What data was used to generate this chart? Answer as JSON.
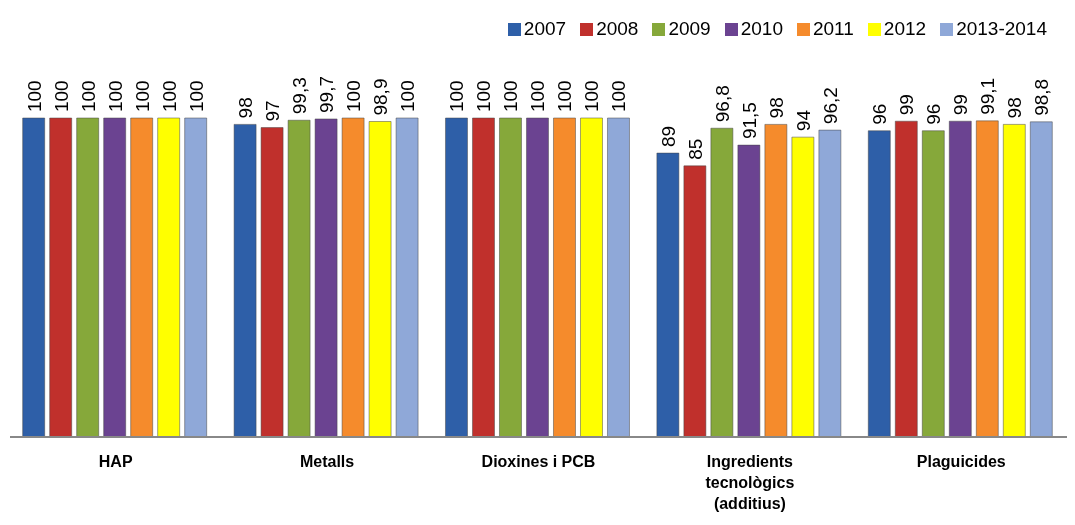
{
  "chart_data": {
    "type": "bar",
    "categories": [
      "HAP",
      "Metalls",
      "Dioxines i PCB",
      "Ingredients tecnològics (additius)",
      "Plaguicides"
    ],
    "series": [
      {
        "name": "2007",
        "color": "#2e5fa8",
        "values": [
          100,
          98,
          100,
          89,
          96
        ],
        "value_labels": [
          "100",
          "98",
          "100",
          "89",
          "96"
        ]
      },
      {
        "name": "2008",
        "color": "#c0302c",
        "values": [
          100,
          97,
          100,
          85,
          99
        ],
        "value_labels": [
          "100",
          "97",
          "100",
          "85",
          "99"
        ]
      },
      {
        "name": "2009",
        "color": "#86a83a",
        "values": [
          100,
          99.3,
          100,
          96.8,
          96
        ],
        "value_labels": [
          "100",
          "99,3",
          "100",
          "96,8",
          "96"
        ]
      },
      {
        "name": "2010",
        "color": "#6b4391",
        "values": [
          100,
          99.7,
          100,
          91.5,
          99
        ],
        "value_labels": [
          "100",
          "99,7",
          "100",
          "91,5",
          "99"
        ]
      },
      {
        "name": "2011",
        "color": "#f58b2c",
        "values": [
          100,
          100,
          100,
          98,
          99.1
        ],
        "value_labels": [
          "100",
          "100",
          "100",
          "98",
          "99,1"
        ]
      },
      {
        "name": "2012",
        "color": "#ffff00",
        "values": [
          100,
          98.9,
          100,
          94,
          98
        ],
        "value_labels": [
          "100",
          "98,9",
          "100",
          "94",
          "98"
        ]
      },
      {
        "name": "2013-2014",
        "color": "#8fa8d8",
        "values": [
          100,
          100,
          100,
          96.2,
          98.8
        ],
        "value_labels": [
          "100",
          "100",
          "100",
          "96,2",
          "98,8"
        ]
      }
    ],
    "legend": "top right",
    "grid": false
  }
}
